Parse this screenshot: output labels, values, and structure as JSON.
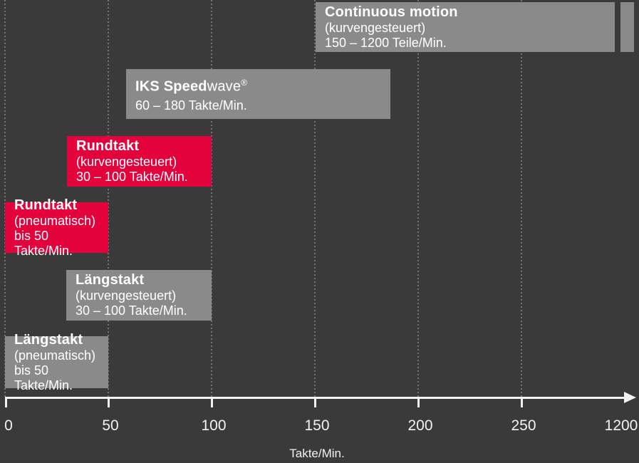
{
  "chart_data": {
    "type": "bar",
    "orientation": "horizontal-range",
    "title": "",
    "xlabel": "Takte/Min.",
    "ylabel": "",
    "xlim": [
      0,
      1200
    ],
    "x_axis_break_after": 250,
    "grid": "dotted vertical gridlines at 0, 50, 100, 150, 200, 250",
    "legend": "none",
    "x_ticks": [
      "0",
      "50",
      "100",
      "150",
      "200",
      "250",
      "1200"
    ],
    "bars": [
      {
        "title": "Continuous motion",
        "title_suffix": "",
        "title_mark": "",
        "qualifier": "(kurvengesteuert)",
        "range_label": "150 – 1200 Teile/Min.",
        "start": 150,
        "end": 1200,
        "color": "#8a8a8a"
      },
      {
        "title": "IKS Speed",
        "title_suffix": "wave",
        "title_mark": "®",
        "qualifier": "",
        "range_label": "60 – 180 Takte/Min.",
        "start": 60,
        "end": 180,
        "color": "#8a8a8a"
      },
      {
        "title": "Rundtakt",
        "title_suffix": "",
        "title_mark": "",
        "qualifier": "(kurvengesteuert)",
        "range_label": "30 – 100 Takte/Min.",
        "start": 30,
        "end": 100,
        "color": "#e3023c"
      },
      {
        "title": "Rundtakt",
        "title_suffix": "",
        "title_mark": "",
        "qualifier": "(pneumatisch)",
        "range_label": "bis 50 Takte/Min.",
        "start": 0,
        "end": 50,
        "color": "#e3023c"
      },
      {
        "title": "Längstakt",
        "title_suffix": "",
        "title_mark": "",
        "qualifier": "(kurvengesteuert)",
        "range_label": "30 – 100 Takte/Min.",
        "start": 30,
        "end": 100,
        "color": "#8a8a8a"
      },
      {
        "title": "Längstakt",
        "title_suffix": "",
        "title_mark": "",
        "qualifier": "(pneumatisch)",
        "range_label": "bis 50 Takte/Min.",
        "start": 0,
        "end": 50,
        "color": "#8a8a8a"
      }
    ],
    "colors": {
      "background": "#3a3a3b",
      "bar_gray": "#8a8a8a",
      "bar_red": "#e3023c",
      "bar_text": "#ffffff",
      "axis": "#f2f2f2",
      "gridline": "#747474"
    }
  }
}
